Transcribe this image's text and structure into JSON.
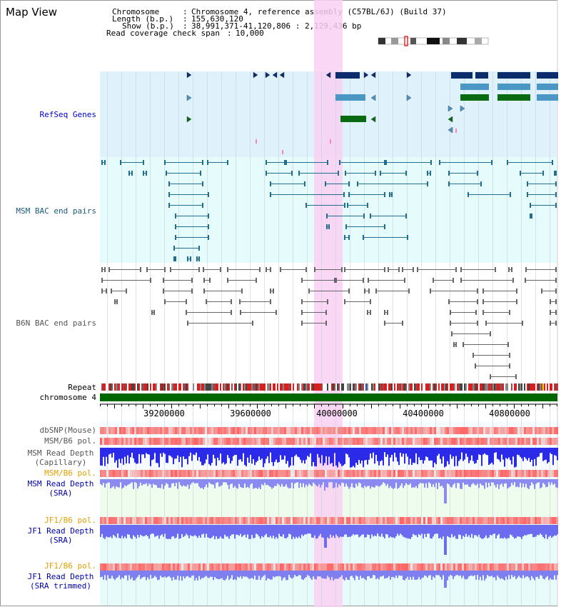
{
  "app_title": "Map View",
  "info": {
    "chromosome_label": "Chromosome",
    "chromosome_value": "Chromosome 4, reference assembly (C57BL/6J) (Build 37)",
    "length_label": "Length (b.p.)",
    "length_value": "155,630,120",
    "show_label": "Show (b.p.)",
    "show_value": "38,991,371-41,120,806 : 2,129,436 bp",
    "coverage_label": "Read coverage check span",
    "coverage_value": "10,000"
  },
  "tracks": {
    "refseq": "RefSeq Genes",
    "msm_bac": "MSM BAC end pairs",
    "b6n_bac": "B6N BAC end pairs",
    "repeat": "Repeat",
    "chromosome": "chromosome 4",
    "dbsnp": "dbSNP(Mouse)",
    "msm_b6_pol_1": "MSM/B6 pol.",
    "msm_depth_cap_1": "MSM Read Depth",
    "msm_depth_cap_2": "(Capillary)",
    "msm_b6_pol_2": "MSM/B6 pol.",
    "msm_depth_sra_1": "MSM Read Depth",
    "msm_depth_sra_2": "(SRA)",
    "jf1_b6_pol_1": "JF1/B6 pol.",
    "jf1_depth_sra_1": "JF1 Read Depth",
    "jf1_depth_sra_2": "(SRA)",
    "jf1_b6_pol_2": "JF1/B6 pol.",
    "jf1_depth_trim_1": "JF1 Read Depth",
    "jf1_depth_trim_2": "(SRA trimmed)"
  },
  "axis_ticks": [
    "39200000",
    "39600000",
    "40000000",
    "40400000",
    "40800000"
  ],
  "colors": {
    "refseq_bg": "#dff2fb",
    "bac_bg": "#e6fbfb",
    "highlight": "#f9d0f2",
    "refseq_label": "#0000cc",
    "msm_label": "#1a5a7a",
    "b6n_label": "#555555",
    "orange_label": "#e0a000",
    "blue_label": "#0000aa",
    "chrom_green": "#006600"
  }
}
